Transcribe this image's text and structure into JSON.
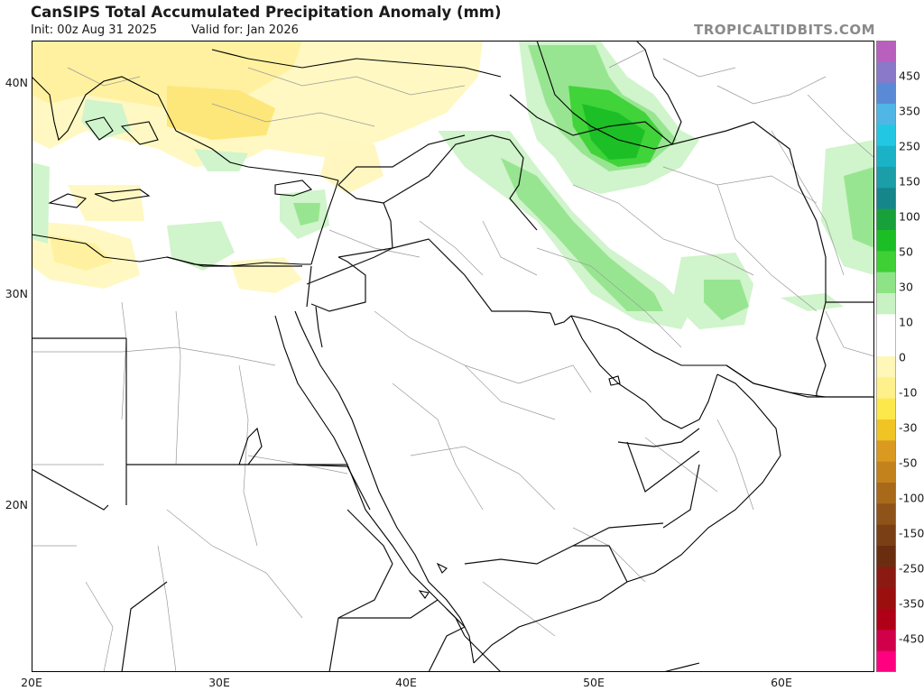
{
  "header": {
    "title": "CanSIPS Total Accumulated Precipitation Anomaly (mm)",
    "init": "Init: 00z Aug 31 2025",
    "valid": "Valid for: Jan 2026",
    "brand": "TROPICALTIDBITS.COM"
  },
  "map": {
    "lat_labels": [
      "40N",
      "30N",
      "20N"
    ],
    "lon_labels": [
      "20E",
      "30E",
      "40E",
      "50E",
      "60E"
    ],
    "extent": {
      "lon_min": 20,
      "lon_max": 65,
      "lat_min": 12,
      "lat_max": 42
    }
  },
  "colorbar": {
    "labels": [
      "450",
      "350",
      "250",
      "150",
      "100",
      "50",
      "30",
      "10",
      "0",
      "-10",
      "-30",
      "-50",
      "-100",
      "-150",
      "-250",
      "-350",
      "-450"
    ],
    "colors": [
      "#b95fbd",
      "#8a78c8",
      "#5a8ad6",
      "#4fb6e6",
      "#22c8e3",
      "#1ab2c7",
      "#1b9ea8",
      "#15868a",
      "#18a13a",
      "#1bbf25",
      "#3fd035",
      "#8ee386",
      "#c8f2c3",
      "#ffffff",
      "#ffffff",
      "#fff7b8",
      "#fef08a",
      "#fde84c",
      "#f0c424",
      "#d99a1f",
      "#c4821c",
      "#a8691b",
      "#8e5318",
      "#7a3f14",
      "#6b2d10",
      "#8b1a12",
      "#9b0f0f",
      "#b00018",
      "#d1004a",
      "#ff0080"
    ],
    "palette_notes": "positive greens=wet, negative yellows/browns=dry"
  }
}
